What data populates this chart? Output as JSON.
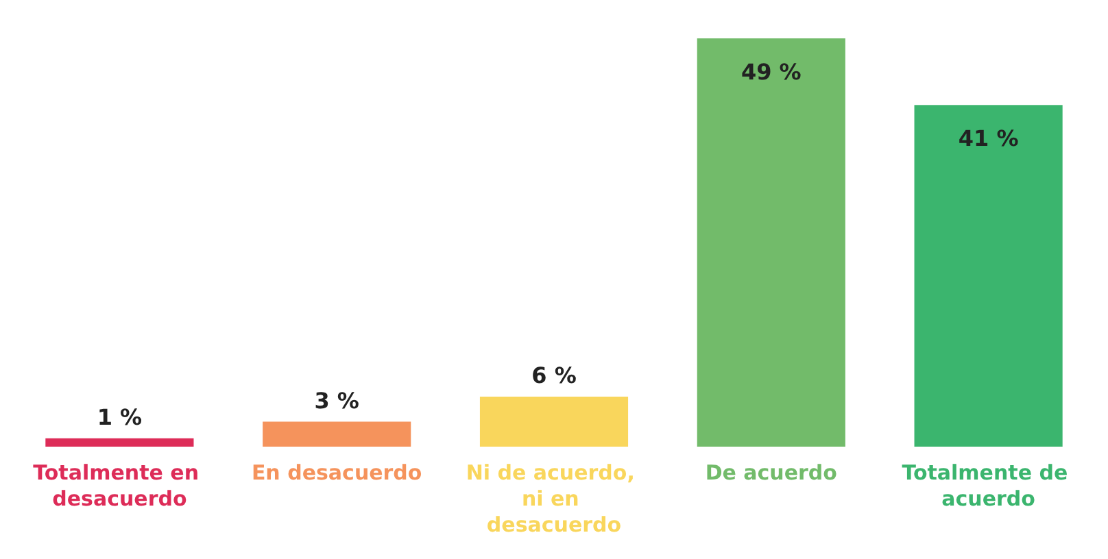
{
  "chart_data": {
    "type": "bar",
    "categories": [
      "Totalmente en desacuerdo",
      "En desacuerdo",
      "Ni de acuerdo, ni en desacuerdo",
      "De acuerdo",
      "Totalmente de acuerdo"
    ],
    "values": [
      1,
      3,
      6,
      49,
      41
    ],
    "colors": [
      "#dd2c58",
      "#f5935c",
      "#f9d65c",
      "#72bb6a",
      "#3bb56e"
    ],
    "value_labels": [
      "1 %",
      "3 %",
      "6 %",
      "49 %",
      "41 %"
    ]
  }
}
